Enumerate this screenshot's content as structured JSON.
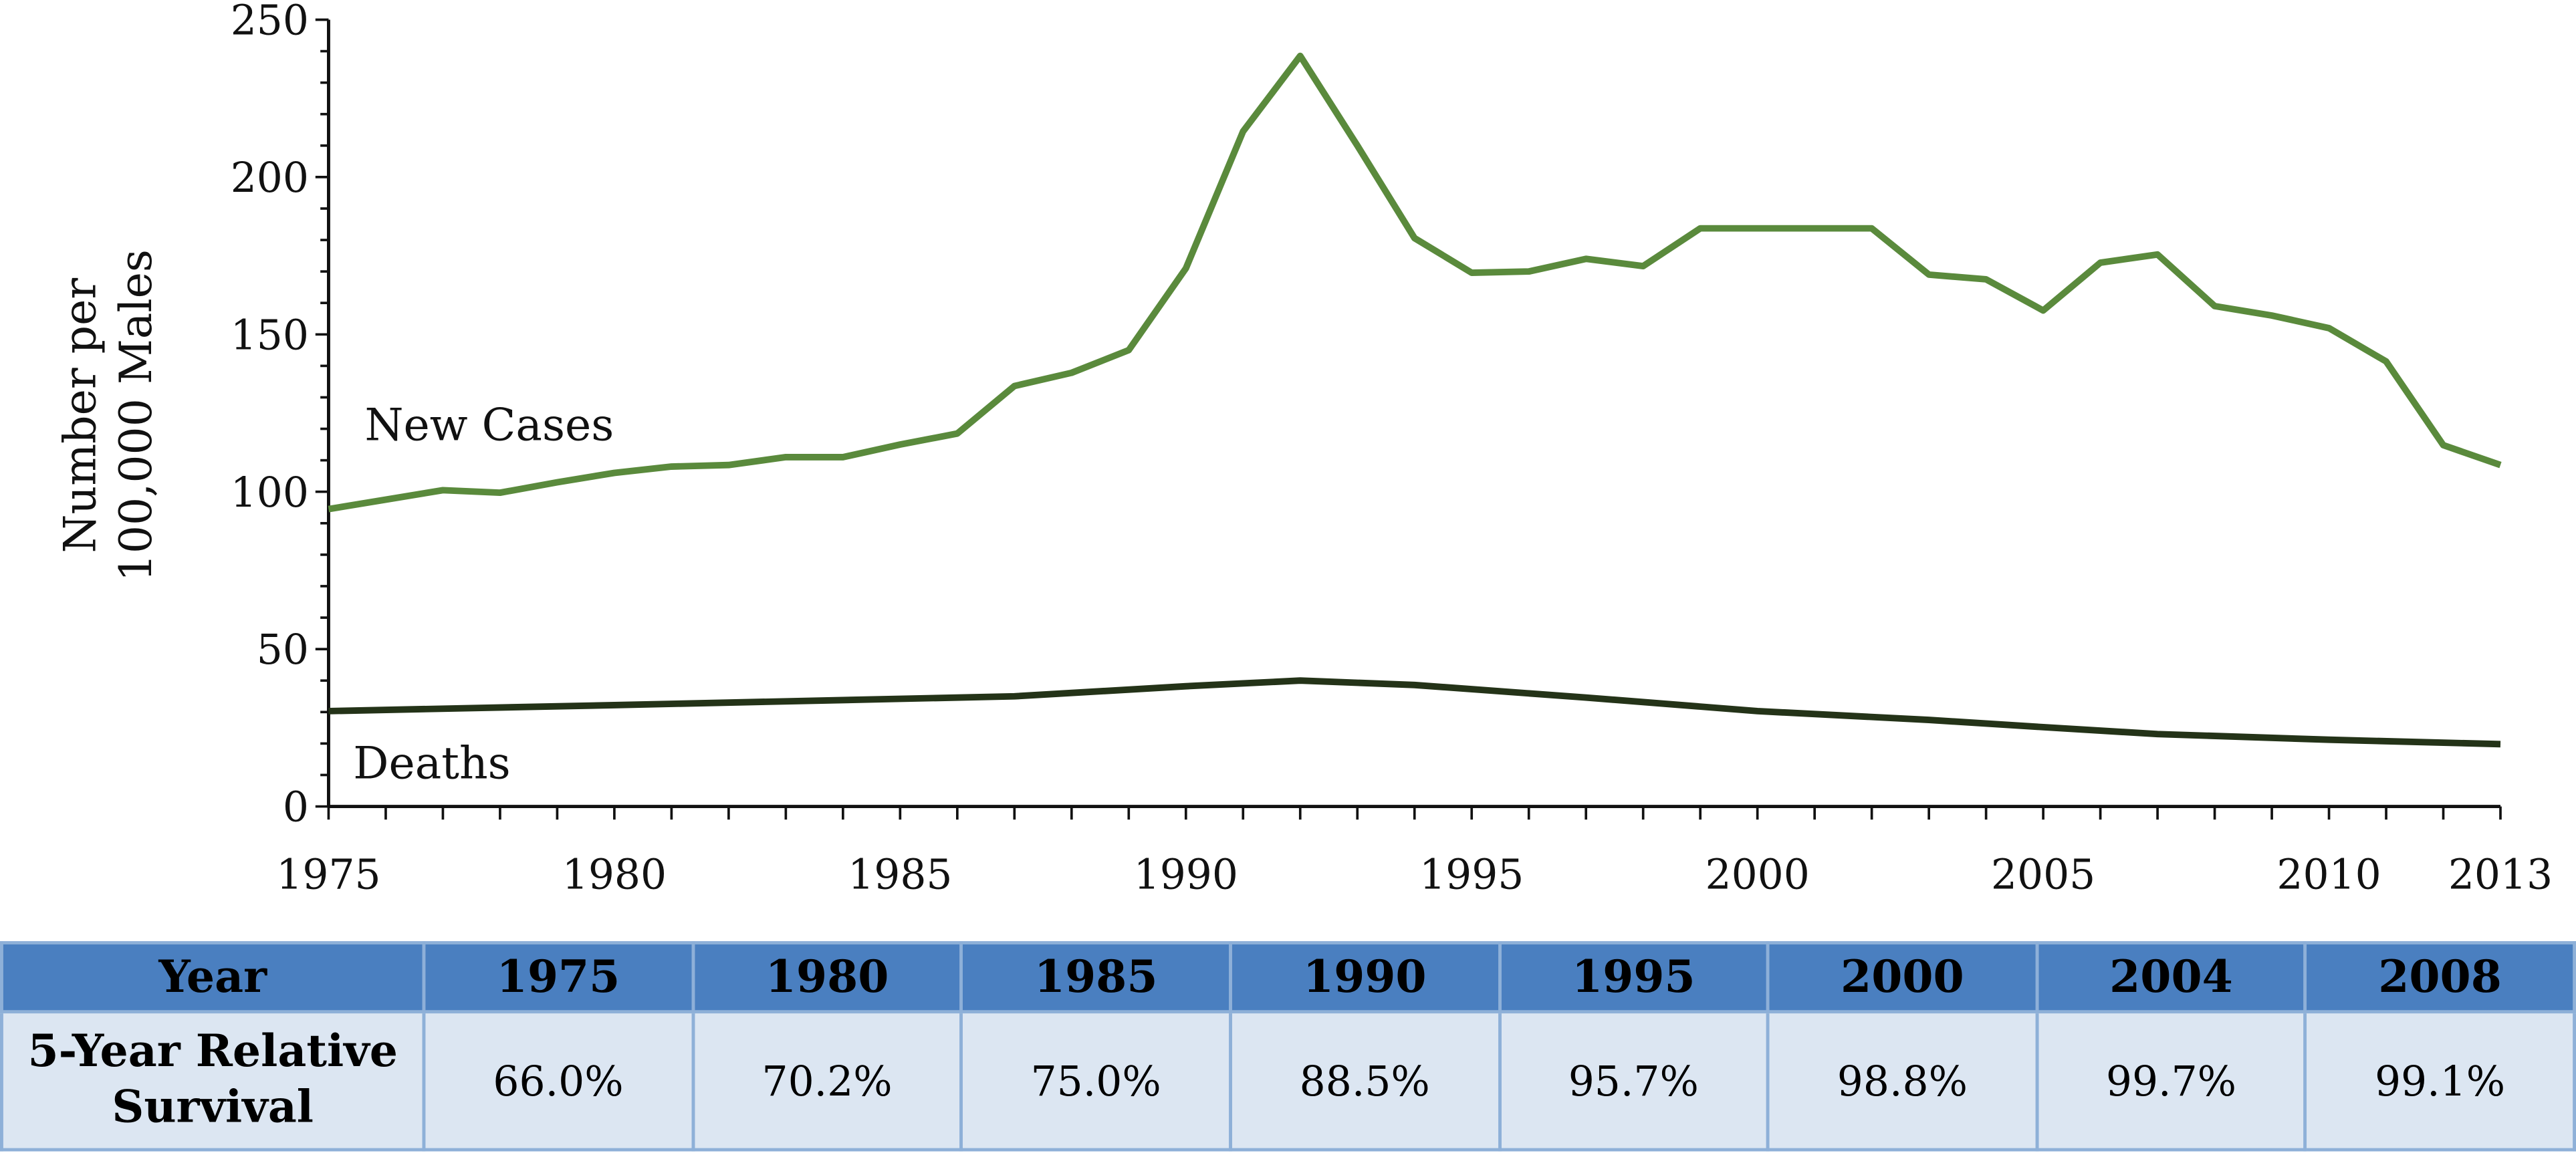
{
  "chart_data": {
    "type": "line",
    "title": "",
    "xlabel": "",
    "ylabel": "Number per 100,000 Males",
    "ylabel_lines": [
      "Number per",
      "100,000 Males"
    ],
    "xlim": [
      1975,
      2013
    ],
    "ylim": [
      0,
      250
    ],
    "x_ticks": [
      "1975",
      "1980",
      "1985",
      "1990",
      "1995",
      "2000",
      "2005",
      "2010",
      "2013"
    ],
    "y_ticks": [
      "0",
      "50",
      "100",
      "150",
      "200",
      "250"
    ],
    "grid": false,
    "series": [
      {
        "name": "New Cases",
        "color": "#5a8a3c",
        "x": [
          1975,
          1976,
          1977,
          1978,
          1979,
          1980,
          1981,
          1982,
          1983,
          1984,
          1985,
          1986,
          1987,
          1988,
          1989,
          1990,
          1991,
          1992,
          1993,
          1994,
          1995,
          1996,
          1997,
          1998,
          1999,
          2000,
          2001,
          2002,
          2003,
          2004,
          2005,
          2006,
          2007,
          2008,
          2009,
          2010,
          2011,
          2012,
          2013
        ],
        "y": [
          94.5,
          97.5,
          100.5,
          99.7,
          103,
          106,
          108,
          108.5,
          111,
          111,
          115,
          118.5,
          133.6,
          137.8,
          145,
          171,
          214.5,
          238.5,
          210,
          180.6,
          169.6,
          170,
          174,
          171.7,
          183.7,
          183.7,
          183.7,
          183.7,
          169,
          167.5,
          157.6,
          172.8,
          175.4,
          159,
          156,
          152,
          141.4,
          114.8,
          108.5
        ]
      },
      {
        "name": "Deaths",
        "color": "#243318",
        "x": [
          1975,
          1980,
          1985,
          1987,
          1990,
          1992,
          1994,
          1997,
          2000,
          2003,
          2005,
          2007,
          2010,
          2013
        ],
        "y": [
          30.3,
          32.2,
          34.2,
          35,
          38.2,
          40,
          38.6,
          34.6,
          30.3,
          27.5,
          25.2,
          23,
          21.2,
          19.8
        ]
      }
    ],
    "labels": {
      "new_cases": "New Cases",
      "deaths": "Deaths"
    }
  },
  "table": {
    "header_label": "Year",
    "row_label": "5-Year Relative Survival",
    "row_label_lines": [
      "5-Year Relative",
      "Survival"
    ],
    "years": [
      "1975",
      "1980",
      "1985",
      "1990",
      "1995",
      "2000",
      "2004",
      "2008"
    ],
    "survival": [
      "66.0%",
      "70.2%",
      "75.0%",
      "88.5%",
      "95.7%",
      "98.8%",
      "99.7%",
      "99.1%"
    ]
  }
}
